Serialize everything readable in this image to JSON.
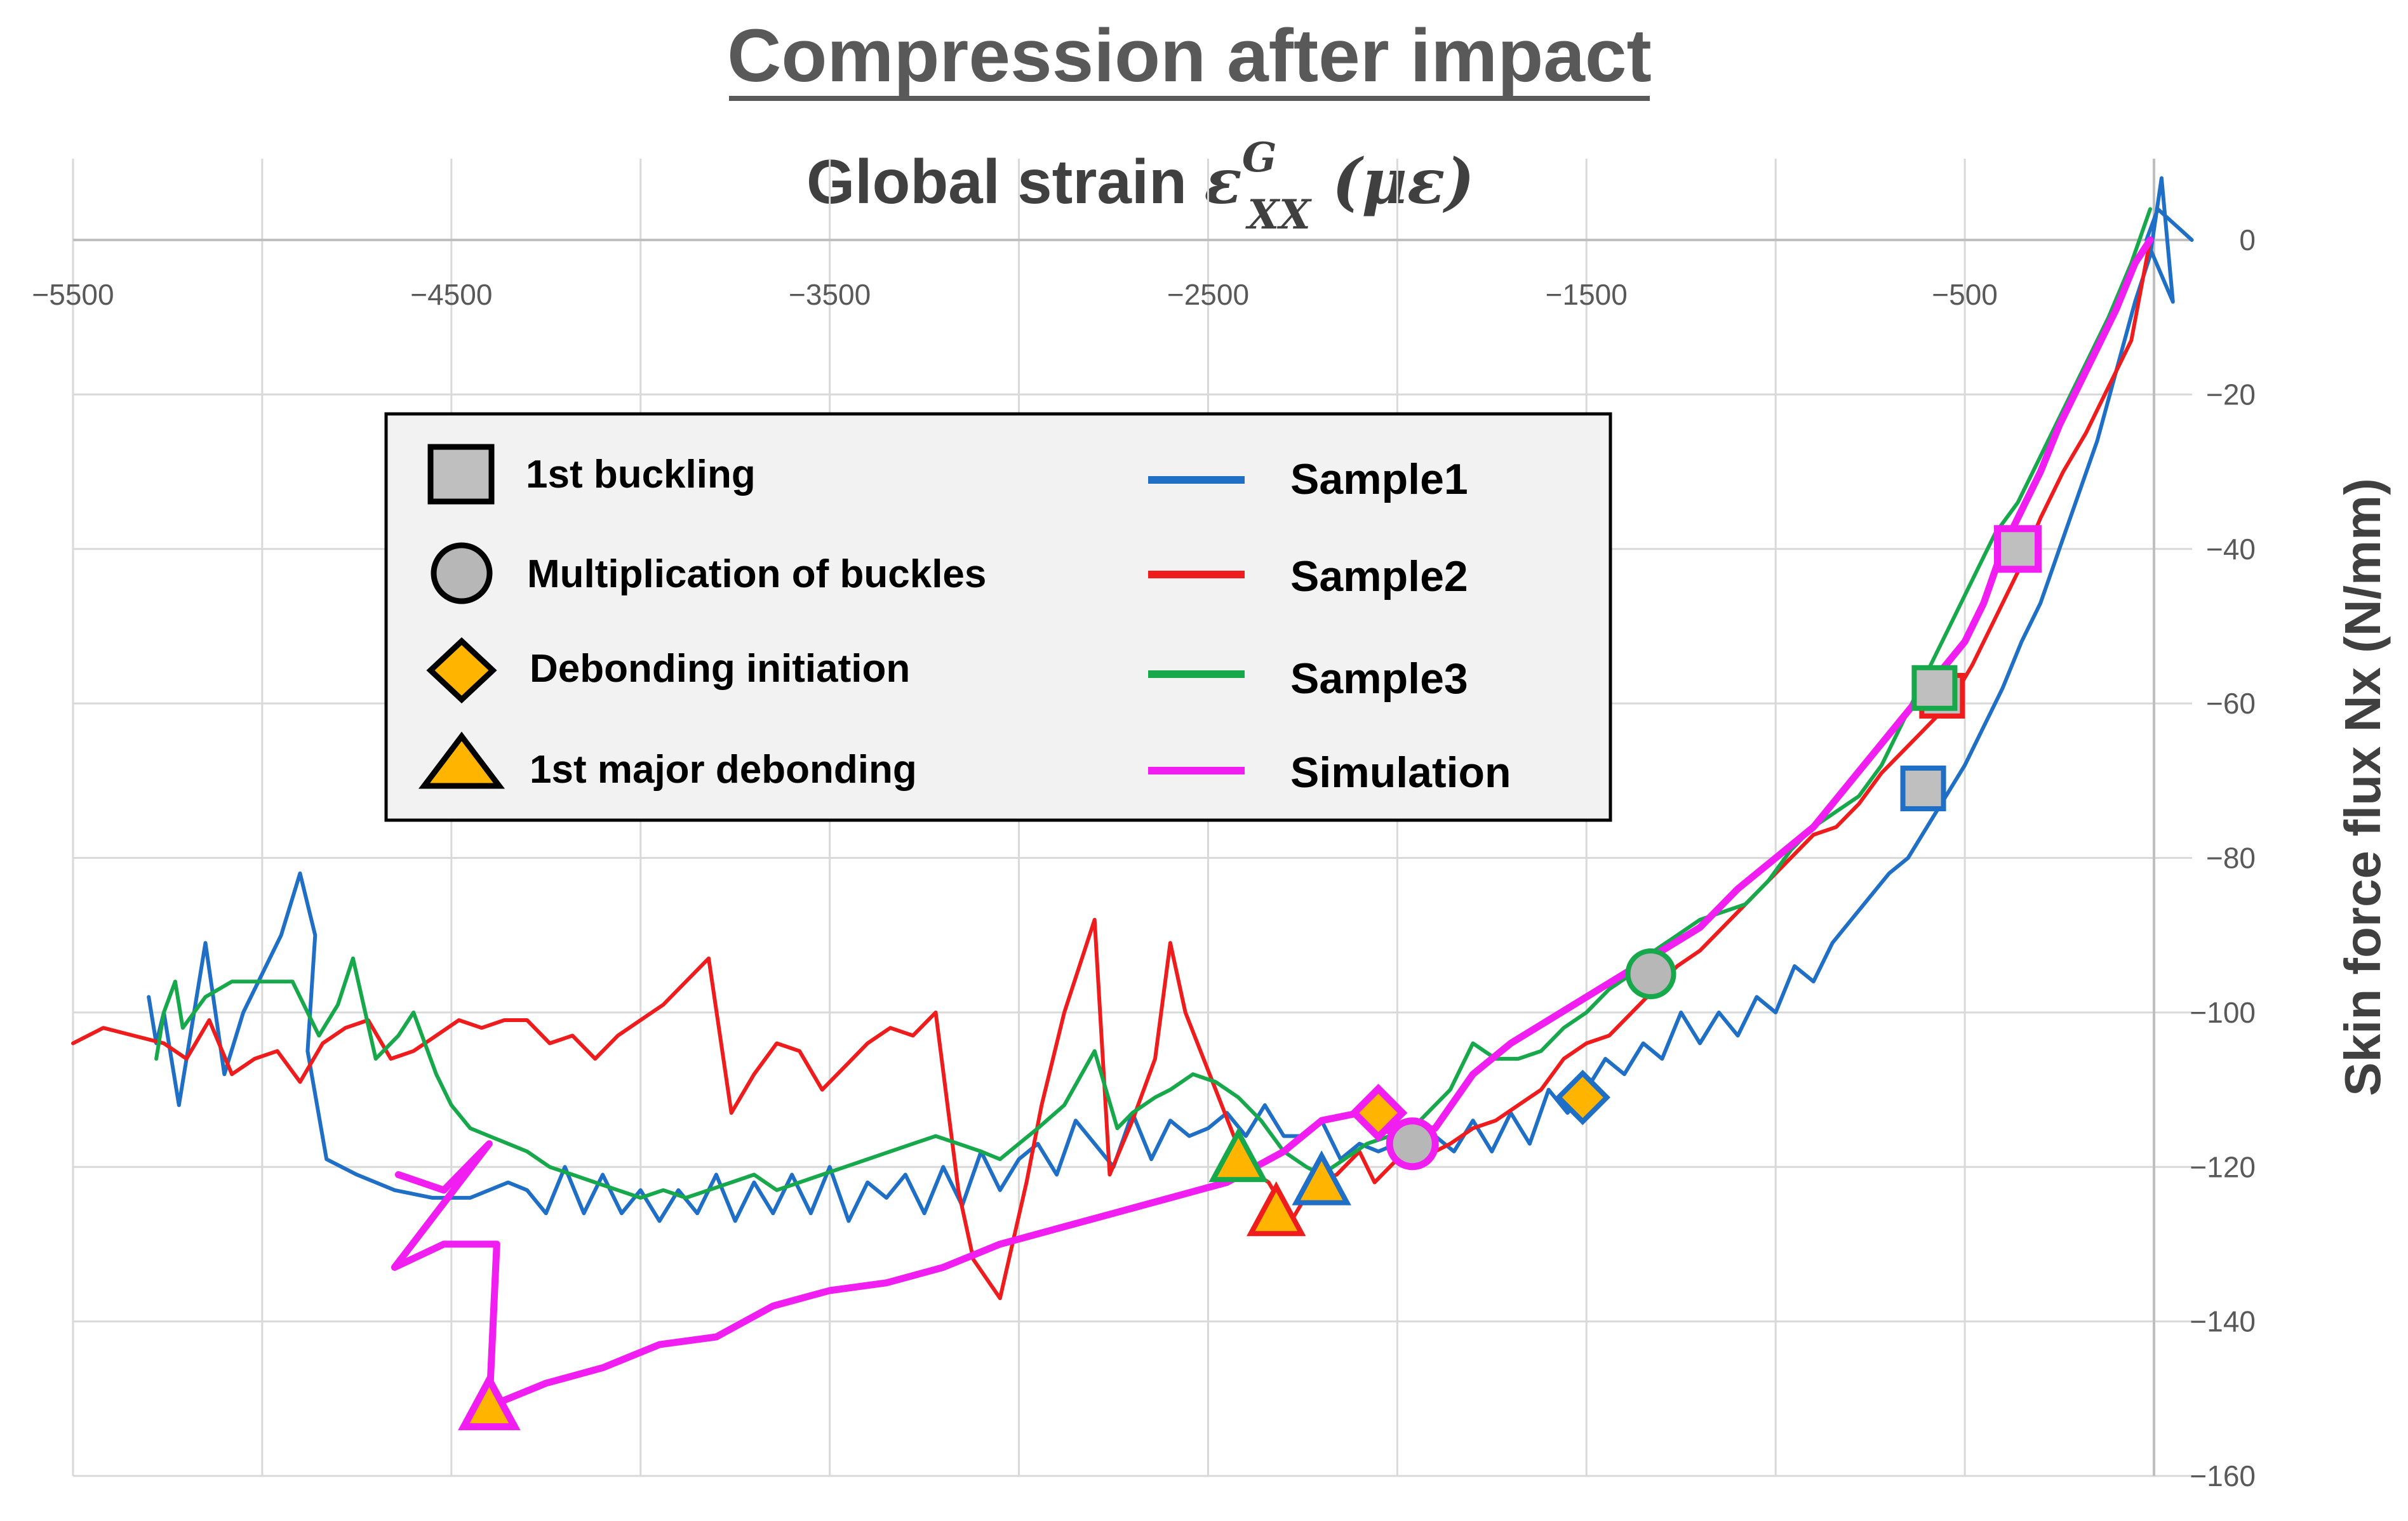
{
  "chart_data": {
    "type": "line",
    "title": "Compression after impact",
    "xlabel": {
      "prefix": "Global strain ",
      "symbol": "ε",
      "superscript": "G",
      "subscript": "XX",
      "unit": " (με)"
    },
    "ylabel": "Skin force flux Nx  (N/mm)",
    "xlim": [
      -5500,
      0
    ],
    "ylim": [
      -160,
      0
    ],
    "x_ticks": [
      -5500,
      -4500,
      -3500,
      -2500,
      -1500,
      -500
    ],
    "x_tick_labels": [
      "−5500",
      "−4500",
      "−3500",
      "−2500",
      "−1500",
      "−500"
    ],
    "x_grid": [
      -5000,
      -4000,
      -3000,
      -2000,
      -1000,
      0
    ],
    "y_ticks": [
      0,
      -20,
      -40,
      -60,
      -80,
      -100,
      -120,
      -140,
      -160
    ],
    "y_tick_labels": [
      "0",
      "−20",
      "−40",
      "−60",
      "−80",
      "−100",
      "−120",
      "−140",
      "−160"
    ],
    "grid": true,
    "legend_position": "upper-left",
    "marker_legend": [
      {
        "label": "1st buckling",
        "shape": "square"
      },
      {
        "label": "Multiplication of buckles",
        "shape": "circle"
      },
      {
        "label": "Debonding initiation",
        "shape": "diamond"
      },
      {
        "label": "1st major debonding",
        "shape": "triangle"
      }
    ],
    "series": [
      {
        "name": "Sample1",
        "color": "#1f6fc6",
        "x": [
          -5300,
          -5280,
          -5260,
          -5220,
          -5150,
          -5100,
          -5050,
          -4950,
          -4900,
          -4860,
          -4880,
          -4830,
          -4750,
          -4650,
          -4550,
          -4450,
          -4350,
          -4300,
          -4250,
          -4200,
          -4150,
          -4100,
          -4050,
          -4000,
          -3950,
          -3900,
          -3850,
          -3800,
          -3750,
          -3700,
          -3650,
          -3600,
          -3550,
          -3500,
          -3450,
          -3400,
          -3350,
          -3300,
          -3250,
          -3200,
          -3150,
          -3100,
          -3050,
          -3000,
          -2950,
          -2900,
          -2850,
          -2800,
          -2750,
          -2700,
          -2650,
          -2600,
          -2550,
          -2500,
          -2450,
          -2400,
          -2350,
          -2300,
          -2250,
          -2200,
          -2150,
          -2100,
          -2050,
          -2000,
          -1950,
          -1900,
          -1850,
          -1800,
          -1750,
          -1700,
          -1650,
          -1600,
          -1550,
          -1500,
          -1450,
          -1400,
          -1350,
          -1300,
          -1250,
          -1200,
          -1150,
          -1100,
          -1050,
          -1000,
          -950,
          -900,
          -850,
          -800,
          -750,
          -700,
          -650,
          -600,
          -550,
          -500,
          -450,
          -400,
          -350,
          -300,
          -250,
          -200,
          -150,
          -100,
          -50,
          -10,
          20,
          50,
          -20,
          10,
          100
        ],
        "y": [
          -98,
          -104,
          -100,
          -112,
          -91,
          -108,
          -100,
          -90,
          -82,
          -90,
          -105,
          -119,
          -121,
          -123,
          -124,
          -124,
          -122,
          -123,
          -126,
          -120,
          -126,
          -121,
          -126,
          -123,
          -127,
          -123,
          -126,
          -121,
          -127,
          -122,
          -126,
          -121,
          -126,
          -120,
          -127,
          -122,
          -124,
          -121,
          -126,
          -120,
          -125,
          -118,
          -123,
          -119,
          -117,
          -121,
          -114,
          -117,
          -120,
          -113,
          -119,
          -114,
          -116,
          -115,
          -113,
          -116,
          -112,
          -116,
          -116,
          -114,
          -119,
          -117,
          -118,
          -117,
          -119,
          -116,
          -118,
          -114,
          -118,
          -113,
          -117,
          -110,
          -113,
          -110,
          -106,
          -108,
          -104,
          -106,
          -100,
          -104,
          -100,
          -103,
          -98,
          -100,
          -94,
          -96,
          -91,
          -88,
          -85,
          -82,
          -80,
          -76,
          -72,
          -68,
          -63,
          -58,
          -52,
          -47,
          -40,
          -33,
          -26,
          -17,
          -8,
          -2,
          8,
          -8,
          0,
          4,
          0
        ]
      },
      {
        "name": "Sample2",
        "color": "#ee1c1c",
        "x": [
          -5500,
          -5420,
          -5340,
          -5260,
          -5200,
          -5140,
          -5080,
          -5020,
          -4960,
          -4900,
          -4840,
          -4780,
          -4720,
          -4660,
          -4600,
          -4540,
          -4480,
          -4420,
          -4360,
          -4300,
          -4240,
          -4180,
          -4120,
          -4060,
          -4000,
          -3940,
          -3880,
          -3820,
          -3760,
          -3700,
          -3640,
          -3580,
          -3520,
          -3460,
          -3400,
          -3340,
          -3280,
          -3220,
          -3160,
          -3120,
          -3050,
          -2980,
          -2940,
          -2880,
          -2800,
          -2760,
          -2700,
          -2640,
          -2600,
          -2560,
          -2480,
          -2400,
          -2340,
          -2280,
          -2220,
          -2160,
          -2100,
          -2060,
          -2000,
          -1960,
          -1900,
          -1860,
          -1800,
          -1740,
          -1680,
          -1620,
          -1560,
          -1500,
          -1440,
          -1380,
          -1320,
          -1260,
          -1200,
          -1140,
          -1080,
          -1020,
          -960,
          -900,
          -840,
          -780,
          -720,
          -660,
          -600,
          -540,
          -480,
          -420,
          -360,
          -300,
          -240,
          -180,
          -120,
          -60,
          -10
        ],
        "y": [
          -104,
          -102,
          -103,
          -104,
          -106,
          -101,
          -108,
          -106,
          -105,
          -109,
          -104,
          -102,
          -101,
          -106,
          -105,
          -103,
          -101,
          -102,
          -101,
          -101,
          -104,
          -103,
          -106,
          -103,
          -101,
          -99,
          -96,
          -93,
          -113,
          -108,
          -104,
          -105,
          -110,
          -107,
          -104,
          -102,
          -103,
          -100,
          -123,
          -132,
          -137,
          -122,
          -112,
          -100,
          -88,
          -121,
          -114,
          -106,
          -91,
          -100,
          -110,
          -120,
          -122,
          -127,
          -122,
          -121,
          -118,
          -122,
          -119,
          -118,
          -118,
          -117,
          -115,
          -114,
          -112,
          -110,
          -106,
          -104,
          -103,
          -100,
          -97,
          -94,
          -92,
          -89,
          -86,
          -83,
          -80,
          -77,
          -76,
          -73,
          -69,
          -66,
          -63,
          -60,
          -55,
          -49,
          -43,
          -36,
          -30,
          -25,
          -19,
          -13,
          0
        ]
      },
      {
        "name": "Sample3",
        "color": "#18a84c",
        "x": [
          -5280,
          -5260,
          -5230,
          -5210,
          -5150,
          -5080,
          -5000,
          -4920,
          -4850,
          -4800,
          -4760,
          -4700,
          -4640,
          -4600,
          -4540,
          -4500,
          -4450,
          -4400,
          -4350,
          -4300,
          -4240,
          -4180,
          -4120,
          -4060,
          -4000,
          -3940,
          -3880,
          -3820,
          -3760,
          -3700,
          -3640,
          -3580,
          -3520,
          -3460,
          -3400,
          -3340,
          -3280,
          -3220,
          -3160,
          -3100,
          -3050,
          -3000,
          -2950,
          -2880,
          -2800,
          -2740,
          -2700,
          -2640,
          -2600,
          -2540,
          -2480,
          -2420,
          -2360,
          -2300,
          -2240,
          -2200,
          -2140,
          -2080,
          -2020,
          -1960,
          -1900,
          -1860,
          -1800,
          -1740,
          -1680,
          -1620,
          -1560,
          -1500,
          -1440,
          -1380,
          -1320,
          -1260,
          -1200,
          -1140,
          -1080,
          -1020,
          -960,
          -900,
          -840,
          -780,
          -720,
          -660,
          -600,
          -540,
          -480,
          -420,
          -360,
          -300,
          -240,
          -180,
          -120,
          -60,
          -10
        ],
        "y": [
          -106,
          -100,
          -96,
          -102,
          -98,
          -96,
          -96,
          -96,
          -103,
          -99,
          -93,
          -106,
          -103,
          -100,
          -108,
          -112,
          -115,
          -116,
          -117,
          -118,
          -120,
          -121,
          -122,
          -123,
          -124,
          -123,
          -124,
          -123,
          -122,
          -121,
          -123,
          -122,
          -121,
          -120,
          -119,
          -118,
          -117,
          -116,
          -117,
          -118,
          -119,
          -117,
          -115,
          -112,
          -105,
          -115,
          -113,
          -111,
          -110,
          -108,
          -109,
          -111,
          -114,
          -118,
          -120,
          -121,
          -119,
          -117,
          -116,
          -115,
          -112,
          -110,
          -104,
          -106,
          -106,
          -105,
          -102,
          -100,
          -97,
          -95,
          -92,
          -90,
          -88,
          -87,
          -86,
          -83,
          -79,
          -76,
          -74,
          -72,
          -68,
          -62,
          -56,
          -50,
          -44,
          -38,
          -34,
          -28,
          -22,
          -16,
          -10,
          -3,
          4
        ]
      },
      {
        "name": "Simulation",
        "color": "#f01ef0",
        "x": [
          -4640,
          -4520,
          -4400,
          -4650,
          -4520,
          -4460,
          -4380,
          -4400,
          -4250,
          -4100,
          -3950,
          -3800,
          -3650,
          -3500,
          -3350,
          -3200,
          -3050,
          -2900,
          -2750,
          -2600,
          -2450,
          -2300,
          -2200,
          -2100,
          -2000,
          -1900,
          -1800,
          -1700,
          -1600,
          -1500,
          -1400,
          -1300,
          -1200,
          -1100,
          -1000,
          -900,
          -800,
          -700,
          -600,
          -500,
          -450,
          -400,
          -350,
          -300,
          -250,
          -200,
          -150,
          -100,
          -50,
          -10
        ],
        "y": [
          -121,
          -123,
          -117,
          -133,
          -130,
          -130,
          -130,
          -151,
          -148,
          -146,
          -143,
          -142,
          -138,
          -136,
          -135,
          -133,
          -130,
          -128,
          -126,
          -124,
          -122,
          -118,
          -114,
          -113,
          -116,
          -115,
          -108,
          -104,
          -101,
          -98,
          -95,
          -92,
          -89,
          -84,
          -80,
          -76,
          -70,
          -64,
          -58,
          -52,
          -47,
          -40,
          -35,
          -30,
          -24,
          -19,
          -14,
          -9,
          -3,
          0
        ]
      }
    ],
    "markers": [
      {
        "series": "Sample1",
        "event": "1st buckling",
        "shape": "square",
        "x": -610,
        "y": -71
      },
      {
        "series": "Sample2",
        "event": "1st buckling",
        "shape": "square",
        "x": -560,
        "y": -59
      },
      {
        "series": "Sample3",
        "event": "1st buckling",
        "shape": "square",
        "x": -580,
        "y": -58
      },
      {
        "series": "Simulation",
        "event": "1st buckling",
        "shape": "square",
        "x": -360,
        "y": -40
      },
      {
        "series": "Sample3",
        "event": "Multiplication of buckles",
        "shape": "circle",
        "x": -1330,
        "y": -95
      },
      {
        "series": "Simulation",
        "event": "Multiplication of buckles",
        "shape": "circle",
        "x": -1960,
        "y": -117
      },
      {
        "series": "Sample1",
        "event": "Debonding initiation",
        "shape": "diamond",
        "x": -1510,
        "y": -111
      },
      {
        "series": "Simulation",
        "event": "Debonding initiation",
        "shape": "diamond",
        "x": -2050,
        "y": -113
      },
      {
        "series": "Sample1",
        "event": "1st major debonding",
        "shape": "triangle",
        "x": -2200,
        "y": -122
      },
      {
        "series": "Sample2",
        "event": "1st major debonding",
        "shape": "triangle",
        "x": -2320,
        "y": -126
      },
      {
        "series": "Sample3",
        "event": "1st major debonding",
        "shape": "triangle",
        "x": -2420,
        "y": -119
      },
      {
        "series": "Simulation",
        "event": "1st major debonding",
        "shape": "triangle",
        "x": -4400,
        "y": -151
      }
    ],
    "marker_fill_colors": {
      "square": "#bfbfbf",
      "circle": "#b7b7b7",
      "diamond": "#ffb500",
      "triangle": "#ffb500"
    }
  }
}
